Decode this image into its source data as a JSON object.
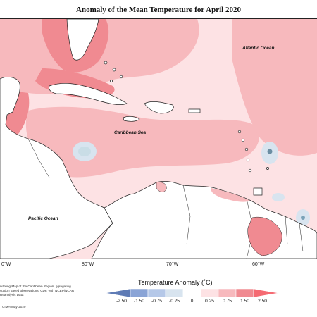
{
  "title": "Anomaly of the Mean Temperature for April 2020",
  "map": {
    "ocean_labels": {
      "atlantic": "Atlantic Ocean",
      "caribbean": "Caribbean Sea",
      "pacific": "Pacific Ocean"
    },
    "longitude_ticks": [
      "0°W",
      "80°W",
      "70°W",
      "60°W"
    ],
    "colors": {
      "land": "#ffffff",
      "coast": "#222222",
      "anomaly_light": "#fde2e4",
      "anomaly_mid": "#f7b9bd",
      "anomaly_strong": "#f08a91",
      "anomaly_negative": "#c9dde6",
      "anomaly_cold": "#7aa2b8"
    }
  },
  "legend": {
    "title": "Temperature Anomaly (˚C)",
    "labels": [
      "-2.50",
      "-1.50",
      "-0.75",
      "-0.25",
      "0",
      "0.25",
      "0.75",
      "1.50",
      "2.50"
    ],
    "colors": [
      "#5e7bb5",
      "#8aa4d6",
      "#b5c8e8",
      "#d8e4ef",
      "#ffffff",
      "#fde2e4",
      "#f7b9bd",
      "#f08a91",
      "#f56a72"
    ]
  },
  "notes": {
    "description": "nitoring Map of the Caribbean Region. ggregating station based observations, CDF, with NCEP/NCAR Reanalysis Data",
    "credit": "CIMH May-2020"
  }
}
